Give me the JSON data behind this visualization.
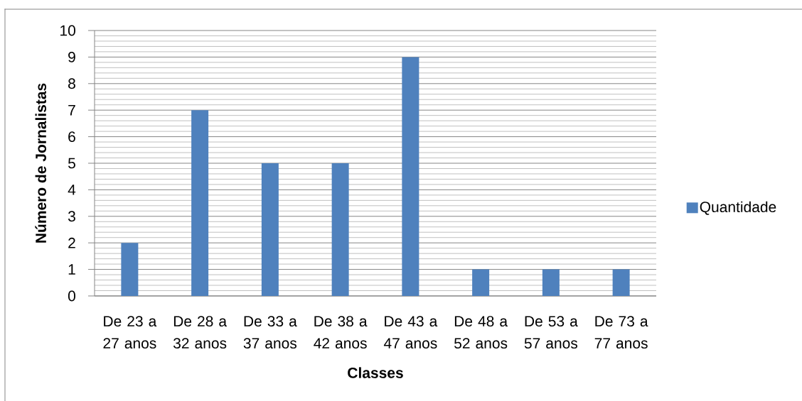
{
  "chart_data": {
    "type": "bar",
    "xlabel": "Classes",
    "ylabel": "Número de Jornalistas",
    "categories": [
      "De 23 a 27 anos",
      "De 28 a 32 anos",
      "De 33 a 37 anos",
      "De 38 a 42 anos",
      "De 43 a 47 anos",
      "De 48 a 52 anos",
      "De 53 a 57 anos",
      "De 73 a 77 anos"
    ],
    "series": [
      {
        "name": "Quantidade",
        "color": "#4f81bd",
        "values": [
          2,
          7,
          5,
          5,
          9,
          1,
          1,
          1
        ]
      }
    ],
    "ylim": [
      0,
      10
    ],
    "yticks": [
      0,
      1,
      2,
      3,
      4,
      5,
      6,
      7,
      8,
      9,
      10
    ],
    "grid": "y",
    "legend": "right"
  }
}
